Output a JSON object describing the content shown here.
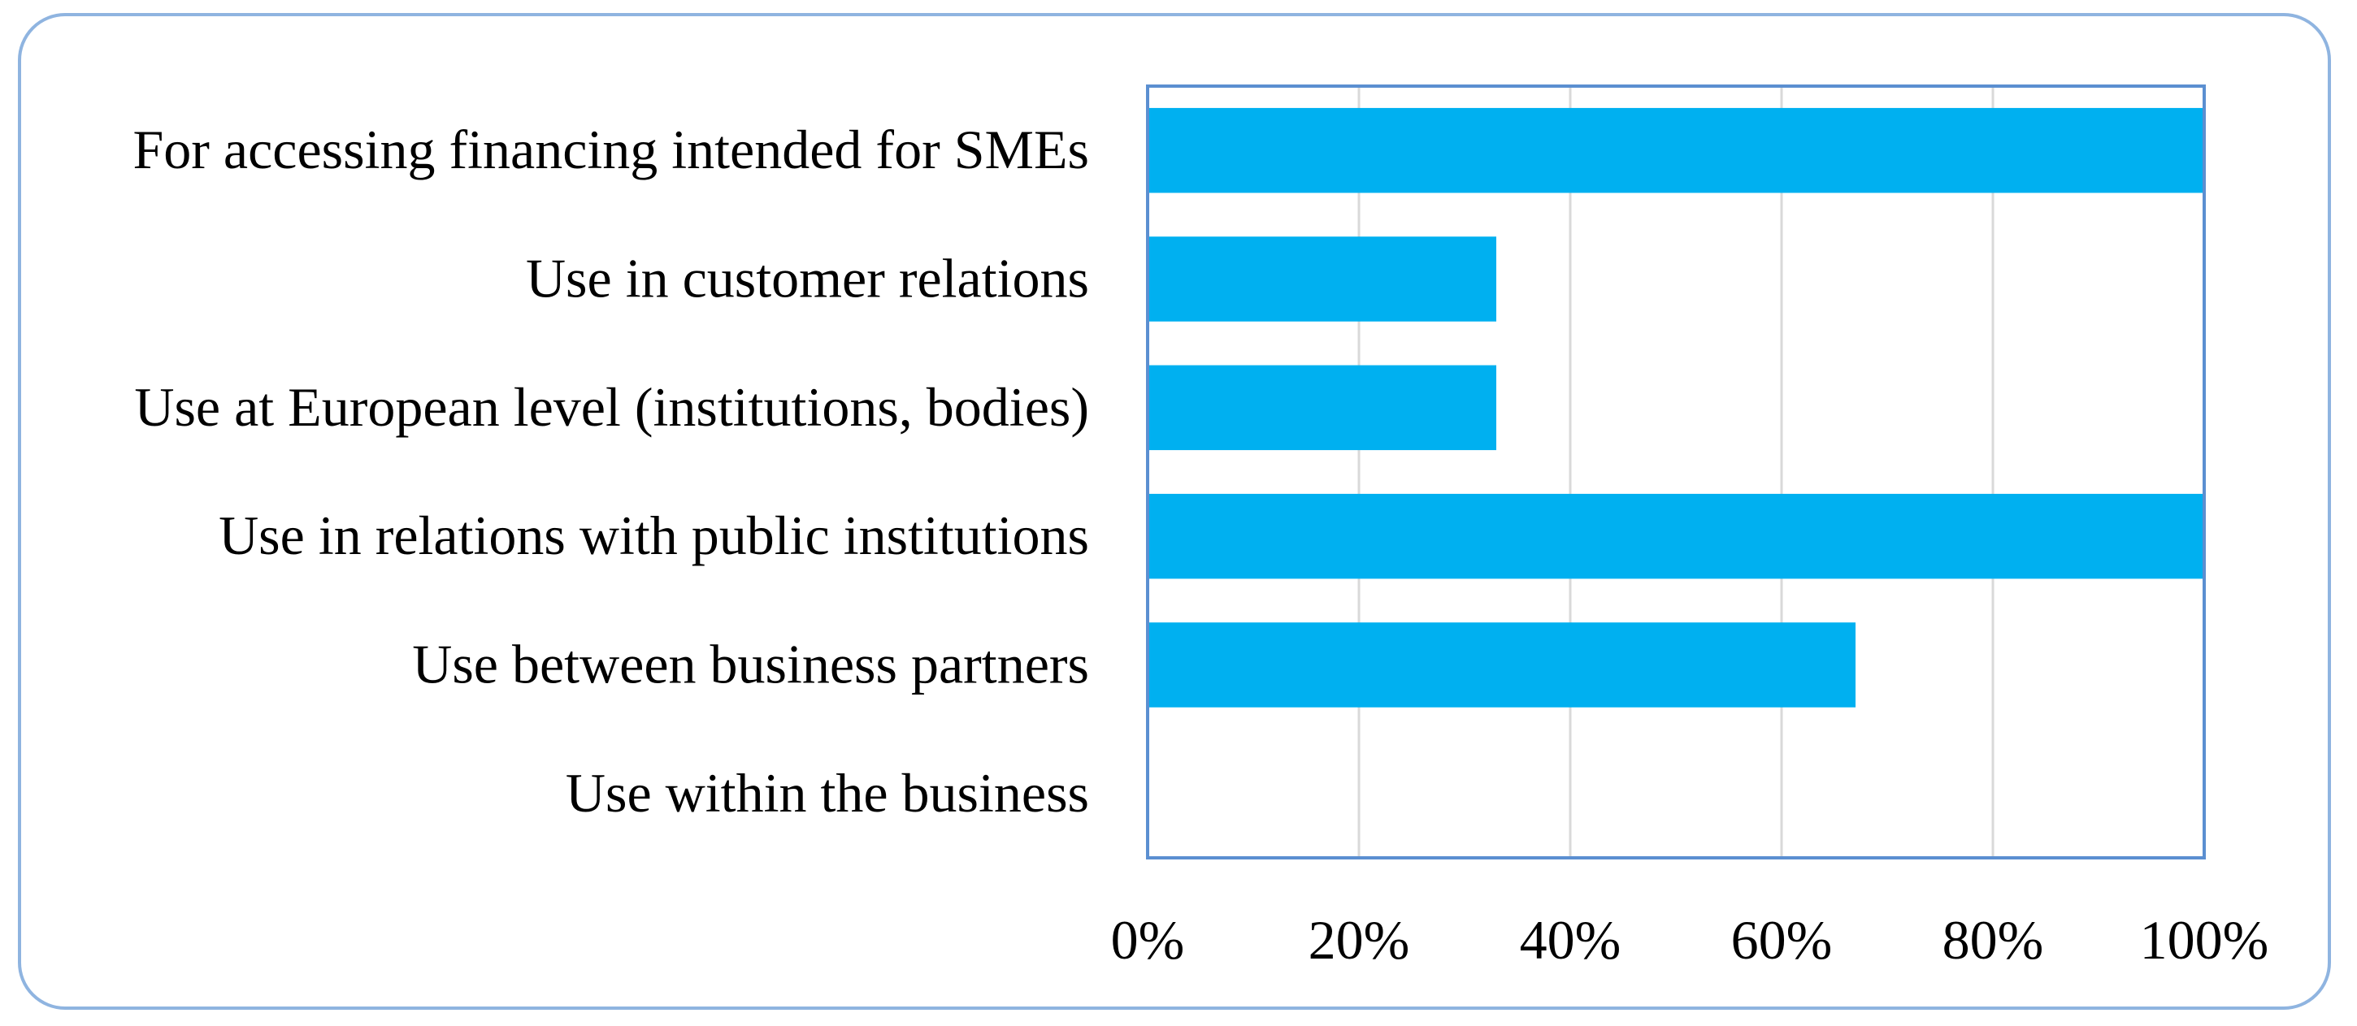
{
  "chart_data": {
    "type": "bar",
    "orientation": "horizontal",
    "title": "",
    "xlabel": "",
    "ylabel": "",
    "categories": [
      "For accessing financing intended for SMEs",
      "Use in customer relations",
      "Use at European level (institutions, bodies)",
      "Use in relations with public institutions",
      "Use between business partners",
      "Use within the business"
    ],
    "values": [
      100,
      33,
      33,
      100,
      67,
      0
    ],
    "xlim": [
      0,
      100
    ],
    "x_ticks": [
      0,
      20,
      40,
      60,
      80,
      100
    ],
    "x_tick_labels": [
      "0%",
      "20%",
      "40%",
      "60%",
      "80%",
      "100%"
    ],
    "grid": "vertical",
    "colors": {
      "bar": "#00b0f0",
      "plot_border": "#5b8fd1",
      "grid": "#d9d9d9",
      "frame": "#8fb4e0"
    }
  }
}
